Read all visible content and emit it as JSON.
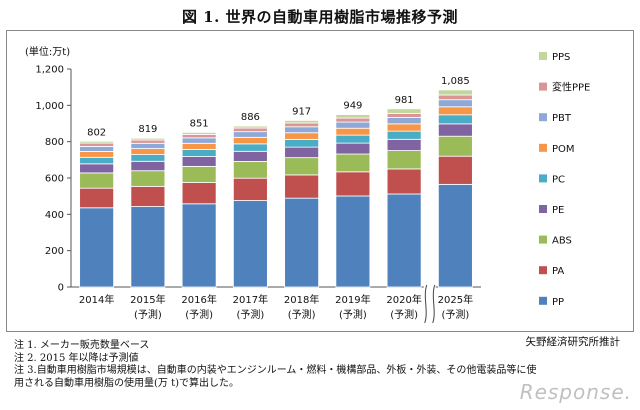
{
  "title": "図 1.  世界の自動車用樹脂市場推移予測",
  "notes": [
    "注 1. メーカー販売数量ベース",
    "注 2. 2015 年以降は予測値",
    "注  3.自動車用樹脂市場規模は、自動車の内装やエンジンルーム・燃料・機構部品、外板・外装、その他電装品等に使",
    "用される自動車用樹脂の使用量(万 t)で算出した。"
  ],
  "source": "矢野経済研究所推計",
  "watermark": "Response.",
  "colors": {
    "PP": "#4f81bd",
    "PA": "#c0504d",
    "ABS": "#9bbb59",
    "PE": "#8064a2",
    "PC": "#4bacc6",
    "POM": "#f79646",
    "PBT": "#8ea9d8",
    "変性PPE": "#d99694",
    "PPS": "#c3d69b"
  },
  "chart_data": {
    "type": "bar",
    "stacked": true,
    "ylabel": "(単位:万t)",
    "ylim": [
      0,
      1200
    ],
    "yticks": [
      "0",
      "200",
      "400",
      "600",
      "800",
      "1,000",
      "1,200"
    ],
    "grid": false,
    "legend_position": "right",
    "axis_break_between": [
      "2020年",
      "2025年"
    ],
    "categories": [
      "2014年",
      "2015年",
      "2016年",
      "2017年",
      "2018年",
      "2019年",
      "2020年",
      "2025年"
    ],
    "category_sublabels": [
      "",
      "(予測)",
      "(予測)",
      "(予測)",
      "(予測)",
      "(予測)",
      "(予測)",
      "(予測)"
    ],
    "totals": [
      "802",
      "819",
      "851",
      "886",
      "917",
      "949",
      "981",
      "1,085"
    ],
    "total_values": [
      802,
      819,
      851,
      886,
      917,
      949,
      981,
      1085
    ],
    "legend_order": [
      "PPS",
      "変性PPE",
      "PBT",
      "POM",
      "PC",
      "PE",
      "ABS",
      "PA",
      "PP"
    ],
    "series": [
      {
        "name": "PP",
        "values": [
          436,
          443,
          458,
          476,
          489,
          501,
          512,
          565
        ]
      },
      {
        "name": "PA",
        "values": [
          108,
          111,
          117,
          123,
          128,
          133,
          138,
          155
        ]
      },
      {
        "name": "ABS",
        "values": [
          84,
          86,
          89,
          92,
          95,
          98,
          101,
          110
        ]
      },
      {
        "name": "PE",
        "values": [
          50,
          52,
          54,
          56,
          58,
          60,
          62,
          68
        ]
      },
      {
        "name": "PC",
        "values": [
          36,
          37,
          39,
          41,
          42,
          44,
          45,
          50
        ]
      },
      {
        "name": "POM",
        "values": [
          32,
          33,
          34,
          36,
          37,
          38,
          40,
          44
        ]
      },
      {
        "name": "PBT",
        "values": [
          28,
          29,
          30,
          31,
          33,
          34,
          35,
          39
        ]
      },
      {
        "name": "変性PPE",
        "values": [
          18,
          18,
          19,
          20,
          21,
          22,
          23,
          26
        ]
      },
      {
        "name": "PPS",
        "values": [
          10,
          10,
          11,
          11,
          14,
          19,
          25,
          28
        ]
      }
    ]
  }
}
